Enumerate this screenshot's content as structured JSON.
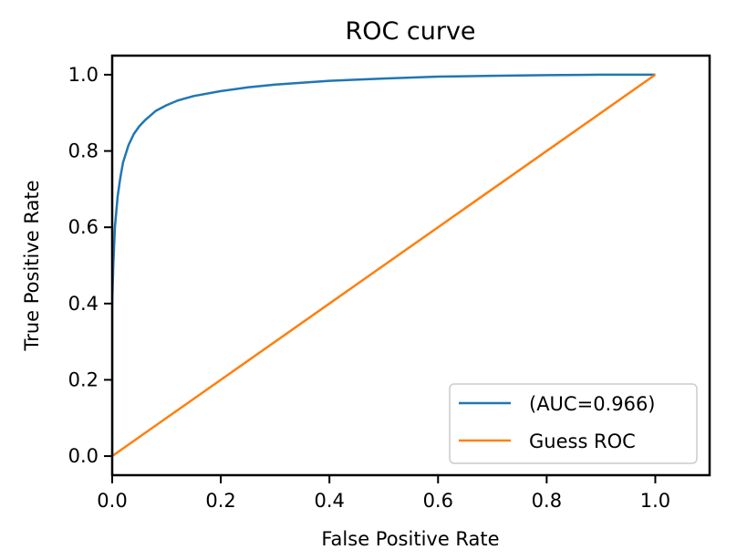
{
  "chart_data": {
    "type": "line",
    "title": "ROC curve",
    "xlabel": "False Positive Rate",
    "ylabel": "True Positive Rate",
    "xlim": [
      0.0,
      1.1
    ],
    "ylim": [
      -0.05,
      1.05
    ],
    "xticks": [
      0.0,
      0.2,
      0.4,
      0.6,
      0.8,
      1.0
    ],
    "xtick_labels": [
      "0.0",
      "0.2",
      "0.4",
      "0.6",
      "0.8",
      "1.0"
    ],
    "yticks": [
      0.0,
      0.2,
      0.4,
      0.6,
      0.8,
      1.0
    ],
    "ytick_labels": [
      "0.0",
      "0.2",
      "0.4",
      "0.6",
      "0.8",
      "1.0"
    ],
    "grid": false,
    "legend_position": "bottom-right",
    "series": [
      {
        "name": "(AUC=0.966)",
        "color": "#1f77b4",
        "x": [
          0.0,
          0.0,
          0.002,
          0.005,
          0.01,
          0.015,
          0.02,
          0.03,
          0.04,
          0.05,
          0.06,
          0.08,
          0.1,
          0.12,
          0.15,
          0.2,
          0.25,
          0.3,
          0.4,
          0.5,
          0.6,
          0.7,
          0.8,
          0.9,
          1.0
        ],
        "y": [
          0.0,
          0.4,
          0.5,
          0.6,
          0.68,
          0.73,
          0.77,
          0.815,
          0.845,
          0.865,
          0.88,
          0.905,
          0.92,
          0.932,
          0.944,
          0.957,
          0.967,
          0.974,
          0.984,
          0.99,
          0.995,
          0.997,
          0.999,
          1.0,
          1.0
        ]
      },
      {
        "name": "Guess ROC",
        "color": "#ff7f0e",
        "x": [
          0.0,
          1.0
        ],
        "y": [
          0.0,
          1.0
        ]
      }
    ]
  }
}
